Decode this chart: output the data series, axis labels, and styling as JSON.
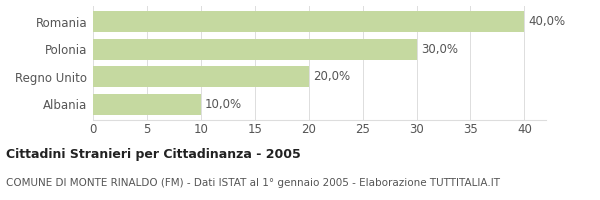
{
  "categories": [
    "Albania",
    "Regno Unito",
    "Polonia",
    "Romania"
  ],
  "values": [
    10,
    20,
    30,
    40
  ],
  "bar_color": "#c5d9a0",
  "bar_labels": [
    "10,0%",
    "20,0%",
    "30,0%",
    "40,0%"
  ],
  "xlim": [
    0,
    42
  ],
  "xticks": [
    0,
    5,
    10,
    15,
    20,
    25,
    30,
    35,
    40
  ],
  "title_bold": "Cittadini Stranieri per Cittadinanza - 2005",
  "subtitle": "COMUNE DI MONTE RINALDO (FM) - Dati ISTAT al 1° gennaio 2005 - Elaborazione TUTTITALIA.IT",
  "background_color": "#ffffff",
  "label_fontsize": 8.5,
  "bar_label_fontsize": 8.5,
  "title_fontsize": 9,
  "subtitle_fontsize": 7.5,
  "tick_fontsize": 8.5,
  "bar_height": 0.75,
  "grid_color": "#dddddd",
  "text_color": "#555555",
  "title_color": "#222222"
}
